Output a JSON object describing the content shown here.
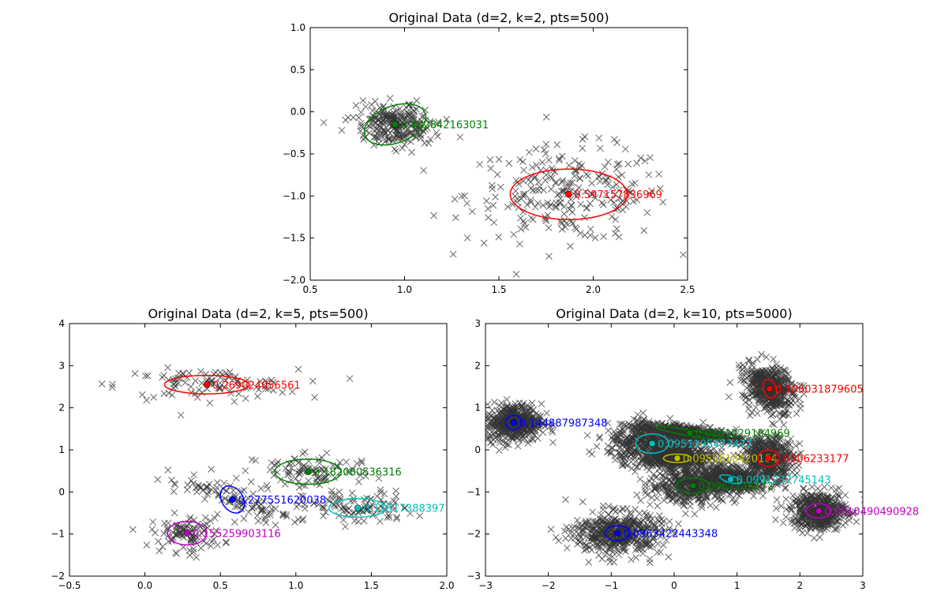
{
  "chart_data": [
    {
      "type": "scatter",
      "title": "Original Data (d=2, k=2, pts=500)",
      "xlim": [
        0.5,
        2.5
      ],
      "ylim": [
        -2.0,
        1.0
      ],
      "xticks": [
        "0.5",
        "1.0",
        "1.5",
        "2.0",
        "2.5"
      ],
      "yticks": [
        "−2.0",
        "−1.5",
        "−1.0",
        "−0.5",
        "0.0",
        "0.5",
        "1.0"
      ],
      "grid": false,
      "clusters": [
        {
          "color": "#008000",
          "center": [
            0.95,
            -0.15
          ],
          "spread": [
            0.1,
            0.13
          ],
          "tilt": 20,
          "rx": 0.17,
          "ry": 0.22,
          "n": 250,
          "label": "0.402842163031"
        },
        {
          "color": "#ff0000",
          "center": [
            1.87,
            -0.98
          ],
          "spread": [
            0.27,
            0.28
          ],
          "tilt": 0,
          "rx": 0.31,
          "ry": 0.3,
          "n": 250,
          "label": "0.597157836969"
        }
      ]
    },
    {
      "type": "scatter",
      "title": "Original Data (d=2, k=5, pts=500)",
      "xlim": [
        -0.5,
        2.0
      ],
      "ylim": [
        -2,
        4
      ],
      "xticks": [
        "−0.5",
        "0.0",
        "0.5",
        "1.0",
        "1.5",
        "2.0"
      ],
      "yticks": [
        "−2",
        "−1",
        "0",
        "1",
        "2",
        "3",
        "4"
      ],
      "grid": false,
      "clusters": [
        {
          "color": "#ff0000",
          "center": [
            0.41,
            2.55
          ],
          "spread": [
            0.3,
            0.18
          ],
          "tilt": 0,
          "rx": 0.28,
          "ry": 0.22,
          "n": 100,
          "label": "0.269024056561"
        },
        {
          "color": "#008000",
          "center": [
            1.08,
            0.48
          ],
          "spread": [
            0.22,
            0.25
          ],
          "tilt": 0,
          "rx": 0.22,
          "ry": 0.3,
          "n": 100,
          "label": "0.182080536316"
        },
        {
          "color": "#0000ff",
          "center": [
            0.58,
            -0.18
          ],
          "spread": [
            0.08,
            0.35
          ],
          "tilt": 35,
          "rx": 0.07,
          "ry": 0.35,
          "n": 100,
          "label": "0.277551620038"
        },
        {
          "color": "#00bfbf",
          "center": [
            1.41,
            -0.38
          ],
          "spread": [
            0.18,
            0.2
          ],
          "tilt": 0,
          "rx": 0.19,
          "ry": 0.22,
          "n": 100,
          "label": "0.11517388397"
        },
        {
          "color": "#bf00bf",
          "center": [
            0.28,
            -0.98
          ],
          "spread": [
            0.12,
            0.22
          ],
          "tilt": 0,
          "rx": 0.13,
          "ry": 0.28,
          "n": 100,
          "label": "0.155259903116"
        }
      ]
    },
    {
      "type": "scatter",
      "title": "Original Data (d=2, k=10, pts=5000)",
      "xlim": [
        -3,
        3
      ],
      "ylim": [
        -3,
        3
      ],
      "xticks": [
        "−3",
        "−2",
        "−1",
        "0",
        "1",
        "2",
        "3"
      ],
      "yticks": [
        "−3",
        "−2",
        "−1",
        "0",
        "1",
        "2",
        "3"
      ],
      "grid": false,
      "clusters": [
        {
          "color": "#ff0000",
          "center": [
            1.52,
            1.45
          ],
          "spread": [
            0.18,
            0.28
          ],
          "tilt": 20,
          "rx": 0.1,
          "ry": 0.23,
          "n": 500,
          "label": "0.106031879605"
        },
        {
          "color": "#0000ff",
          "center": [
            -2.55,
            0.65
          ],
          "spread": [
            0.22,
            0.22
          ],
          "tilt": 0,
          "rx": 0.13,
          "ry": 0.17,
          "n": 500,
          "label": "0.144887987348"
        },
        {
          "color": "#008000",
          "center": [
            0.25,
            0.4
          ],
          "spread": [
            0.45,
            0.08
          ],
          "tilt": -10,
          "rx": 0.55,
          "ry": 0.07,
          "n": 500,
          "label": "0.0861229184969"
        },
        {
          "color": "#00bfbf",
          "center": [
            -0.35,
            0.15
          ],
          "spread": [
            0.35,
            0.22
          ],
          "tilt": 0,
          "rx": 0.26,
          "ry": 0.23,
          "n": 500,
          "label": "0.0951195477477"
        },
        {
          "color": "#bfbf00",
          "center": [
            0.05,
            -0.2
          ],
          "spread": [
            0.3,
            0.12
          ],
          "tilt": 0,
          "rx": 0.22,
          "ry": 0.1,
          "n": 500,
          "label": "0.0959618420164"
        },
        {
          "color": "#ff0000",
          "center": [
            1.5,
            -0.2
          ],
          "spread": [
            0.2,
            0.25
          ],
          "tilt": 0,
          "rx": 0.17,
          "ry": 0.2,
          "n": 500,
          "label": "0.0906233177"
        },
        {
          "color": "#008000",
          "center": [
            0.3,
            -0.85
          ],
          "spread": [
            0.35,
            0.2
          ],
          "tilt": 0,
          "rx": 0.26,
          "ry": 0.18,
          "n": 500,
          "label": "0.0962236672"
        },
        {
          "color": "#00bfbf",
          "center": [
            0.9,
            -0.7
          ],
          "spread": [
            0.25,
            0.12
          ],
          "tilt": -15,
          "rx": 0.18,
          "ry": 0.08,
          "n": 500,
          "label": "0.0991237745143"
        },
        {
          "color": "#bf00bf",
          "center": [
            2.3,
            -1.45
          ],
          "spread": [
            0.22,
            0.22
          ],
          "tilt": 0,
          "rx": 0.2,
          "ry": 0.17,
          "n": 500,
          "label": "0.0810490490928"
        },
        {
          "color": "#0000ff",
          "center": [
            -0.9,
            -1.98
          ],
          "spread": [
            0.35,
            0.25
          ],
          "tilt": 0,
          "rx": 0.2,
          "ry": 0.18,
          "n": 500,
          "label": "0.0963422443348"
        }
      ]
    }
  ]
}
